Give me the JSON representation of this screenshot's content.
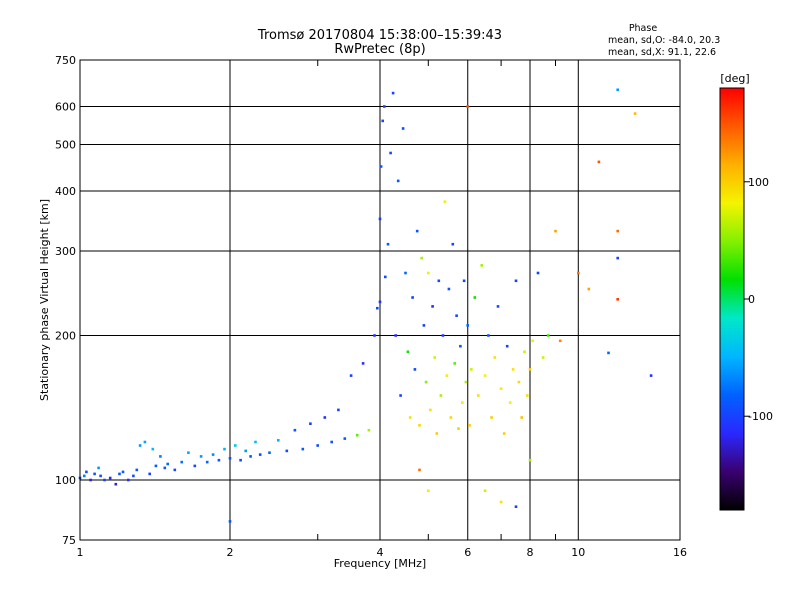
{
  "chart_data": {
    "type": "scatter",
    "title": "Tromsø 20170804 15:38:00–15:39:43",
    "subtitle": "RwPretec (8p)",
    "xlabel": "Frequency [MHz]",
    "ylabel": "Stationary phase Virtual Height [km]",
    "x_scale": "log",
    "y_scale": "log",
    "xlim": [
      1,
      16
    ],
    "ylim": [
      75,
      750
    ],
    "x_ticks": [
      1,
      2,
      4,
      6,
      8,
      10,
      16
    ],
    "x_tick_labels": [
      "1",
      "2",
      "4",
      "6",
      "8",
      "10",
      "16"
    ],
    "y_ticks": [
      75,
      100,
      200,
      300,
      400,
      500,
      600,
      750
    ],
    "y_tick_labels": [
      "75",
      "100",
      "200",
      "300",
      "400",
      "500",
      "600",
      "750"
    ],
    "grid": true,
    "stats": {
      "heading": "Phase",
      "line1": "mean, sd,O: -84.0, 20.3",
      "line2": "mean, sd,X:  91.1, 22.6"
    },
    "colorbar": {
      "label": "[deg]",
      "range": [
        -180,
        180
      ],
      "tick_values": [
        100,
        0,
        -100
      ],
      "tick_labels": [
        "100",
        "0",
        "-100"
      ],
      "colors": [
        "#000000",
        "#3a0070",
        "#2a28ff",
        "#0062ff",
        "#00b6ff",
        "#00e8c8",
        "#00e000",
        "#84f000",
        "#f4f400",
        "#ffb000",
        "#ff5a00",
        "#ff0000"
      ]
    },
    "series": [
      {
        "values": [
          [
            1.0,
            101,
            -95
          ],
          [
            1.02,
            102,
            -70
          ],
          [
            1.03,
            104,
            -95
          ],
          [
            1.05,
            100,
            -120
          ],
          [
            1.07,
            103,
            -90
          ],
          [
            1.09,
            106,
            -60
          ],
          [
            1.1,
            102,
            -95
          ],
          [
            1.12,
            100,
            -100
          ],
          [
            1.15,
            101,
            -110
          ],
          [
            1.18,
            98,
            -120
          ],
          [
            1.2,
            103,
            -90
          ],
          [
            1.22,
            104,
            -85
          ],
          [
            1.25,
            100,
            -110
          ],
          [
            1.28,
            102,
            -95
          ],
          [
            1.3,
            105,
            -88
          ],
          [
            1.32,
            118,
            -60
          ],
          [
            1.35,
            120,
            -55
          ],
          [
            1.38,
            103,
            -100
          ],
          [
            1.4,
            116,
            -45
          ],
          [
            1.42,
            107,
            -85
          ],
          [
            1.45,
            112,
            -70
          ],
          [
            1.48,
            106,
            -90
          ],
          [
            1.5,
            108,
            -80
          ],
          [
            1.55,
            105,
            -95
          ],
          [
            1.6,
            109,
            -75
          ],
          [
            1.65,
            114,
            -55
          ],
          [
            1.7,
            107,
            -95
          ],
          [
            1.75,
            112,
            -60
          ],
          [
            1.8,
            109,
            -80
          ],
          [
            1.85,
            113,
            -65
          ],
          [
            1.9,
            110,
            -85
          ],
          [
            1.95,
            116,
            -50
          ],
          [
            2.0,
            111,
            -90
          ],
          [
            2.05,
            118,
            -40
          ],
          [
            2.1,
            110,
            -95
          ],
          [
            2.15,
            115,
            -60
          ],
          [
            2.2,
            112,
            -85
          ],
          [
            2.25,
            120,
            -45
          ],
          [
            2.3,
            113,
            -95
          ],
          [
            2.4,
            114,
            -80
          ],
          [
            2.5,
            121,
            -50
          ],
          [
            2.6,
            115,
            -95
          ],
          [
            2.7,
            127,
            -90
          ],
          [
            2.8,
            116,
            -85
          ],
          [
            2.9,
            131,
            -100
          ],
          [
            3.0,
            118,
            -95
          ],
          [
            3.1,
            135,
            -110
          ],
          [
            3.2,
            120,
            -90
          ],
          [
            3.3,
            140,
            -100
          ],
          [
            3.4,
            122,
            -85
          ],
          [
            3.5,
            165,
            -100
          ],
          [
            3.6,
            124,
            40
          ],
          [
            3.7,
            175,
            -110
          ],
          [
            3.8,
            127,
            60
          ],
          [
            3.9,
            200,
            -100
          ],
          [
            3.95,
            228,
            -95
          ],
          [
            4.0,
            235,
            -110
          ],
          [
            4.0,
            350,
            -105
          ],
          [
            4.02,
            450,
            -90
          ],
          [
            4.05,
            560,
            -95
          ],
          [
            4.08,
            600,
            -100
          ],
          [
            4.1,
            265,
            -95
          ],
          [
            4.15,
            310,
            -85
          ],
          [
            4.2,
            480,
            -95
          ],
          [
            4.25,
            640,
            -100
          ],
          [
            4.3,
            200,
            -110
          ],
          [
            4.35,
            420,
            -90
          ],
          [
            4.4,
            150,
            -100
          ],
          [
            4.45,
            540,
            -95
          ],
          [
            4.5,
            270,
            -80
          ],
          [
            4.55,
            185,
            20
          ],
          [
            4.6,
            135,
            90
          ],
          [
            4.65,
            240,
            -100
          ],
          [
            4.7,
            170,
            -95
          ],
          [
            4.75,
            330,
            -90
          ],
          [
            4.8,
            130,
            95
          ],
          [
            4.85,
            290,
            60
          ],
          [
            4.9,
            210,
            -100
          ],
          [
            4.95,
            160,
            50
          ],
          [
            5.0,
            270,
            80
          ],
          [
            5.05,
            140,
            90
          ],
          [
            5.1,
            230,
            -110
          ],
          [
            5.15,
            180,
            70
          ],
          [
            5.2,
            125,
            100
          ],
          [
            5.25,
            260,
            -95
          ],
          [
            5.3,
            150,
            60
          ],
          [
            5.35,
            200,
            -100
          ],
          [
            5.4,
            380,
            80
          ],
          [
            5.45,
            165,
            85
          ],
          [
            5.5,
            250,
            -90
          ],
          [
            5.55,
            135,
            95
          ],
          [
            5.6,
            310,
            -100
          ],
          [
            5.65,
            175,
            40
          ],
          [
            5.7,
            220,
            -95
          ],
          [
            5.75,
            128,
            100
          ],
          [
            5.8,
            190,
            -90
          ],
          [
            5.85,
            145,
            85
          ],
          [
            5.9,
            260,
            -100
          ],
          [
            5.95,
            160,
            60
          ],
          [
            6.0,
            600,
            150
          ],
          [
            6.0,
            210,
            -80
          ],
          [
            6.05,
            130,
            100
          ],
          [
            6.1,
            170,
            70
          ],
          [
            6.2,
            240,
            20
          ],
          [
            6.3,
            150,
            90
          ],
          [
            6.4,
            280,
            60
          ],
          [
            6.5,
            165,
            80
          ],
          [
            6.6,
            200,
            -90
          ],
          [
            6.7,
            135,
            100
          ],
          [
            6.8,
            180,
            90
          ],
          [
            6.9,
            230,
            -95
          ],
          [
            7.0,
            155,
            85
          ],
          [
            7.1,
            125,
            100
          ],
          [
            7.2,
            190,
            -100
          ],
          [
            7.3,
            145,
            80
          ],
          [
            7.4,
            170,
            90
          ],
          [
            7.5,
            260,
            -100
          ],
          [
            7.6,
            160,
            95
          ],
          [
            7.7,
            135,
            105
          ],
          [
            7.8,
            185,
            70
          ],
          [
            7.9,
            150,
            90
          ],
          [
            8.0,
            170,
            100
          ],
          [
            8.1,
            195,
            80
          ],
          [
            8.3,
            270,
            -100
          ],
          [
            8.5,
            180,
            70
          ],
          [
            8.7,
            200,
            30
          ],
          [
            9.0,
            330,
            120
          ],
          [
            9.2,
            195,
            130
          ],
          [
            10.0,
            270,
            140
          ],
          [
            10.5,
            250,
            120
          ],
          [
            11.0,
            460,
            150
          ],
          [
            12.0,
            650,
            -60
          ],
          [
            12.0,
            290,
            -100
          ],
          [
            12.0,
            238,
            160
          ],
          [
            12.0,
            330,
            140
          ],
          [
            11.5,
            184,
            -80
          ],
          [
            13.0,
            580,
            110
          ],
          [
            14.0,
            165,
            -110
          ],
          [
            5.0,
            95,
            80
          ],
          [
            6.5,
            95,
            70
          ],
          [
            7.0,
            90,
            90
          ],
          [
            7.5,
            88,
            -100
          ],
          [
            8.0,
            110,
            60
          ],
          [
            2.0,
            82,
            -90
          ],
          [
            4.8,
            105,
            140
          ]
        ]
      }
    ]
  }
}
